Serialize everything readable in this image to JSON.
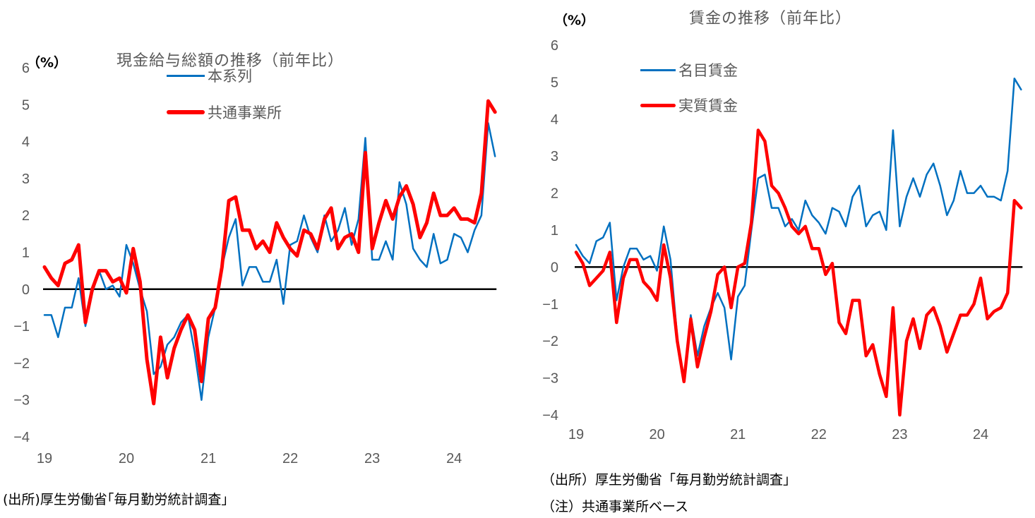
{
  "colors": {
    "blue": "#0070C0",
    "red": "#FF0000",
    "axis": "#000000",
    "text": "#595959"
  },
  "left": {
    "unit": "（%）",
    "title": "現金給与総額の推移（前年比）",
    "legend": [
      {
        "label": "本系列",
        "color": "#0070C0"
      },
      {
        "label": "共通事業所",
        "color": "#FF0000"
      }
    ],
    "source": "(出所)厚生労働省｢毎月勤労統計調査｣"
  },
  "right": {
    "unit": "（%）",
    "title": "賃金の推移（前年比）",
    "legend": [
      {
        "label": "名目賃金",
        "color": "#0070C0"
      },
      {
        "label": "実質賃金",
        "color": "#FF0000"
      }
    ],
    "source": "（出所）厚生労働省「毎月勤労統計調査」",
    "note": "（注）共通事業所ベース"
  },
  "chart_data": [
    {
      "type": "line",
      "title": "現金給与総額の推移（前年比）",
      "xlabel": "",
      "ylabel": "（%）",
      "ylim": [
        -4,
        6
      ],
      "yticks": [
        6,
        5,
        4,
        3,
        2,
        1,
        0,
        -1,
        -2,
        -3,
        -4
      ],
      "x_tick_labels": [
        "19",
        "20",
        "21",
        "22",
        "23",
        "24"
      ],
      "x_start": "2019-01",
      "frequency": "monthly",
      "grid": false,
      "legend_position": "top-left inside",
      "series": [
        {
          "name": "本系列",
          "color": "#0070C0",
          "width": 2.5,
          "values": [
            -0.7,
            -0.7,
            -1.3,
            -0.5,
            -0.5,
            0.3,
            -1.0,
            -0.1,
            0.5,
            0.0,
            0.1,
            -0.2,
            1.2,
            0.7,
            0.0,
            -0.6,
            -2.3,
            -2.1,
            -1.5,
            -1.3,
            -0.9,
            -0.7,
            -1.7,
            -3.0,
            -1.3,
            -0.5,
            0.6,
            1.4,
            1.9,
            0.1,
            0.6,
            0.6,
            0.2,
            0.2,
            0.8,
            -0.4,
            1.2,
            1.3,
            2.0,
            1.4,
            1.0,
            2.0,
            1.3,
            1.6,
            2.2,
            1.2,
            1.9,
            4.1,
            0.8,
            0.8,
            1.3,
            0.8,
            2.9,
            2.3,
            1.1,
            0.8,
            0.6,
            1.5,
            0.7,
            0.8,
            1.5,
            1.4,
            1.0,
            1.6,
            2.0,
            4.5,
            3.6
          ]
        },
        {
          "name": "共通事業所",
          "color": "#FF0000",
          "width": 5,
          "values": [
            0.6,
            0.3,
            0.1,
            0.7,
            0.8,
            1.2,
            -0.9,
            0.0,
            0.5,
            0.5,
            0.2,
            0.3,
            -0.1,
            1.1,
            0.2,
            -1.9,
            -3.1,
            -1.3,
            -2.4,
            -1.6,
            -1.1,
            -0.7,
            -1.1,
            -2.5,
            -0.8,
            -0.5,
            0.6,
            2.4,
            2.5,
            1.6,
            1.6,
            1.1,
            1.3,
            1.0,
            1.8,
            1.4,
            1.1,
            0.9,
            1.6,
            1.5,
            1.1,
            1.9,
            2.2,
            1.1,
            1.4,
            1.5,
            1.0,
            3.7,
            1.1,
            1.8,
            2.4,
            1.9,
            2.5,
            2.8,
            2.3,
            1.4,
            1.8,
            2.6,
            2.0,
            2.0,
            2.2,
            1.9,
            1.9,
            1.8,
            2.6,
            5.1,
            4.8
          ]
        }
      ]
    },
    {
      "type": "line",
      "title": "賃金の推移（前年比）",
      "xlabel": "",
      "ylabel": "（%）",
      "ylim": [
        -4,
        6
      ],
      "yticks": [
        6,
        5,
        4,
        3,
        2,
        1,
        0,
        -1,
        -2,
        -3,
        -4
      ],
      "x_tick_labels": [
        "19",
        "20",
        "21",
        "22",
        "23",
        "24"
      ],
      "x_start": "2019-01",
      "frequency": "monthly",
      "grid": false,
      "legend_position": "top-left inside",
      "series": [
        {
          "name": "名目賃金",
          "color": "#0070C0",
          "width": 2.5,
          "values": [
            0.6,
            0.3,
            0.1,
            0.7,
            0.8,
            1.2,
            -0.9,
            0.0,
            0.5,
            0.5,
            0.2,
            0.3,
            -0.1,
            1.1,
            0.2,
            -1.9,
            -3.1,
            -1.3,
            -2.4,
            -1.6,
            -1.1,
            -0.7,
            -1.1,
            -2.5,
            -0.8,
            -0.5,
            1.0,
            2.4,
            2.5,
            1.6,
            1.6,
            1.1,
            1.3,
            1.0,
            1.8,
            1.4,
            1.2,
            0.9,
            1.6,
            1.5,
            1.1,
            1.9,
            2.2,
            1.1,
            1.4,
            1.5,
            1.0,
            3.7,
            1.1,
            1.9,
            2.4,
            1.9,
            2.5,
            2.8,
            2.2,
            1.4,
            1.8,
            2.6,
            2.0,
            2.0,
            2.2,
            1.9,
            1.9,
            1.8,
            2.6,
            5.1,
            4.8
          ]
        },
        {
          "name": "実質賃金",
          "color": "#FF0000",
          "width": 4.5,
          "values": [
            0.4,
            0.1,
            -0.5,
            -0.3,
            -0.1,
            0.4,
            -1.5,
            -0.3,
            0.2,
            0.2,
            -0.4,
            -0.6,
            -0.9,
            0.6,
            -0.3,
            -2.0,
            -3.1,
            -1.4,
            -2.7,
            -1.9,
            -1.2,
            -0.2,
            0.0,
            -1.1,
            0.0,
            0.1,
            1.2,
            3.7,
            3.4,
            2.2,
            2.0,
            1.6,
            1.1,
            0.9,
            1.1,
            0.5,
            0.5,
            -0.2,
            0.1,
            -1.5,
            -1.8,
            -0.9,
            -0.9,
            -2.4,
            -2.1,
            -2.9,
            -3.5,
            -1.1,
            -4.0,
            -2.0,
            -1.4,
            -2.2,
            -1.3,
            -1.1,
            -1.6,
            -2.3,
            -1.8,
            -1.3,
            -1.3,
            -1.0,
            -0.3,
            -1.4,
            -1.2,
            -1.1,
            -0.7,
            1.8,
            1.6
          ]
        }
      ]
    }
  ]
}
